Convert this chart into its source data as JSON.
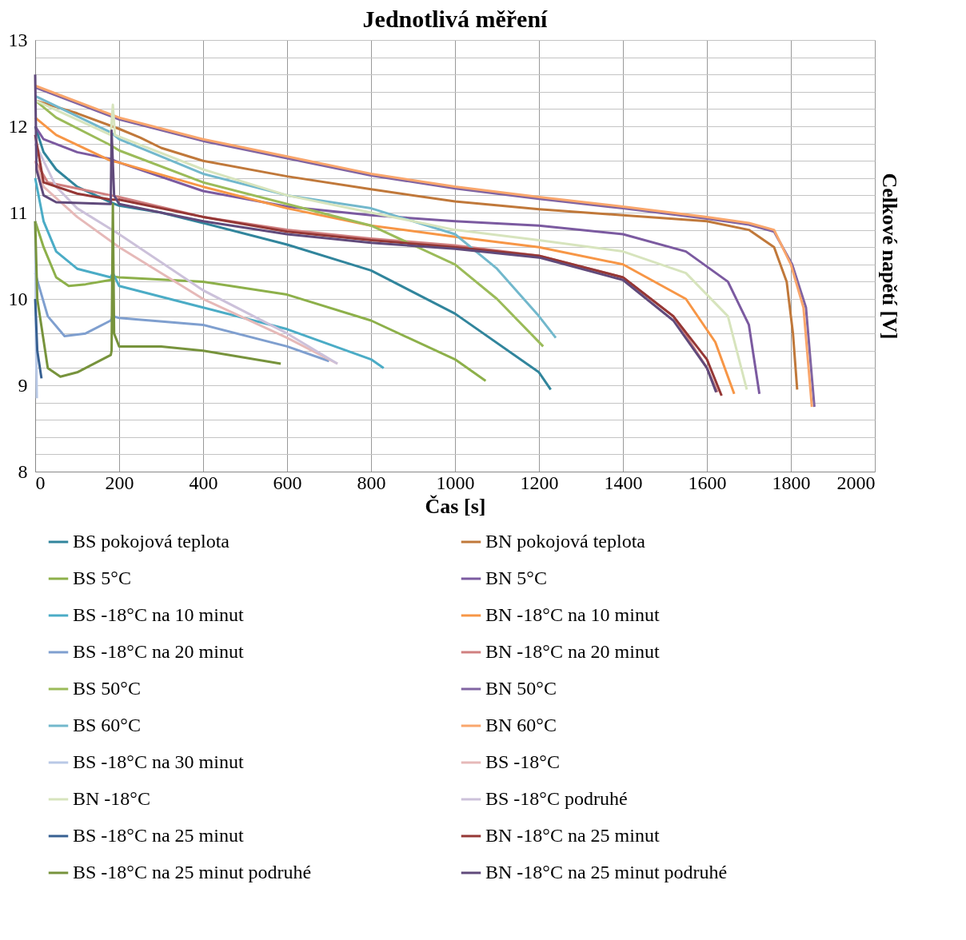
{
  "chart_data": {
    "type": "line",
    "title": "Jednotlivá měření",
    "xlabel": "Čas [s]",
    "y2label": "Celkové napětí [V]",
    "xlim": [
      0,
      2000
    ],
    "xticks": [
      0,
      200,
      400,
      600,
      800,
      1000,
      1200,
      1400,
      1600,
      1800,
      2000
    ],
    "ylim": [
      8,
      13
    ],
    "yticks": [
      8,
      {
        "value": 8.2,
        "label": null
      },
      {
        "value": 8.4,
        "label": null
      },
      {
        "value": 8.6,
        "label": null
      },
      {
        "value": 8.8,
        "label": null
      },
      9,
      {
        "value": 9.2,
        "label": null
      },
      {
        "value": 9.4,
        "label": null
      },
      {
        "value": 9.6,
        "label": null
      },
      {
        "value": 9.8,
        "label": null
      },
      10,
      {
        "value": 10.2,
        "label": null
      },
      {
        "value": 10.4,
        "label": null
      },
      {
        "value": 10.6,
        "label": null
      },
      {
        "value": 10.8,
        "label": null
      },
      11,
      {
        "value": 11.2,
        "label": null
      },
      {
        "value": 11.4,
        "label": null
      },
      {
        "value": 11.6,
        "label": null
      },
      {
        "value": 11.8,
        "label": null
      },
      12,
      {
        "value": 12.2,
        "label": null
      },
      {
        "value": 12.4,
        "label": null
      },
      {
        "value": 12.6,
        "label": null
      },
      {
        "value": 12.8,
        "label": null
      },
      13
    ],
    "grid": true,
    "legend": "bottom",
    "marker": "none",
    "line_style": "solid",
    "series": [
      {
        "name": "BS pokojová teplota",
        "color": "#31859c",
        "x": [
          0,
          20,
          50,
          100,
          180,
          200,
          300,
          400,
          600,
          800,
          1000,
          1200,
          1228
        ],
        "values": [
          12.0,
          11.7,
          11.5,
          11.3,
          11.12,
          11.08,
          11.0,
          10.88,
          10.63,
          10.33,
          9.83,
          9.15,
          8.95
        ]
      },
      {
        "name": "BN pokojová teplota",
        "color": "#c0783a",
        "x": [
          0,
          100,
          200,
          250,
          300,
          400,
          600,
          800,
          1000,
          1200,
          1400,
          1600,
          1700,
          1760,
          1790,
          1805,
          1815
        ],
        "values": [
          12.3,
          12.15,
          11.97,
          11.87,
          11.75,
          11.6,
          11.42,
          11.27,
          11.13,
          11.04,
          10.97,
          10.9,
          10.8,
          10.6,
          10.2,
          9.6,
          8.95
        ]
      },
      {
        "name": "BS 5°C",
        "color": "#8db04a",
        "x": [
          0,
          20,
          50,
          80,
          120,
          180,
          185,
          200,
          400,
          600,
          800,
          1000,
          1073
        ],
        "values": [
          10.9,
          10.6,
          10.25,
          10.15,
          10.17,
          10.22,
          10.26,
          10.25,
          10.2,
          10.05,
          9.75,
          9.3,
          9.05
        ]
      },
      {
        "name": "BN 5°C",
        "color": "#7b5aa0",
        "x": [
          0,
          20,
          100,
          180,
          200,
          400,
          600,
          800,
          1000,
          1200,
          1400,
          1550,
          1650,
          1700,
          1725
        ],
        "values": [
          12.0,
          11.85,
          11.7,
          11.62,
          11.58,
          11.25,
          11.07,
          10.97,
          10.9,
          10.85,
          10.75,
          10.55,
          10.2,
          9.7,
          8.9
        ]
      },
      {
        "name": "BS -18°C na 10 minut",
        "color": "#4bacc6",
        "x": [
          0,
          20,
          50,
          100,
          180,
          185,
          200,
          400,
          600,
          800,
          830
        ],
        "values": [
          11.4,
          10.9,
          10.55,
          10.35,
          10.25,
          10.3,
          10.15,
          9.9,
          9.65,
          9.3,
          9.2
        ]
      },
      {
        "name": "BN -18°C na 10 minut",
        "color": "#f79646",
        "x": [
          0,
          50,
          180,
          200,
          400,
          600,
          800,
          1000,
          1200,
          1400,
          1550,
          1620,
          1665
        ],
        "values": [
          12.1,
          11.9,
          11.6,
          11.58,
          11.3,
          11.05,
          10.85,
          10.72,
          10.6,
          10.4,
          10.0,
          9.5,
          8.9
        ]
      },
      {
        "name": "BS -18°C na 20 minut",
        "color": "#7f9fcf",
        "x": [
          0,
          30,
          70,
          120,
          180,
          185,
          200,
          400,
          600,
          700
        ],
        "values": [
          10.3,
          9.8,
          9.57,
          9.6,
          9.75,
          9.8,
          9.78,
          9.7,
          9.45,
          9.28
        ]
      },
      {
        "name": "BN -18°C na 20 minut",
        "color": "#d08080",
        "x": [
          0,
          30,
          100,
          180,
          200,
          400,
          600,
          800,
          1000,
          1200,
          1400,
          1520,
          1600,
          1625
        ],
        "values": [
          11.6,
          11.35,
          11.28,
          11.2,
          11.18,
          10.95,
          10.8,
          10.7,
          10.62,
          10.5,
          10.25,
          9.8,
          9.2,
          8.92
        ]
      },
      {
        "name": "BS 50°C",
        "color": "#9bbb59",
        "x": [
          0,
          50,
          180,
          200,
          400,
          600,
          800,
          1000,
          1100,
          1210
        ],
        "values": [
          12.3,
          12.1,
          11.78,
          11.72,
          11.35,
          11.1,
          10.85,
          10.4,
          10.0,
          9.45
        ]
      },
      {
        "name": "BN 50°C",
        "color": "#8064a2",
        "x": [
          0,
          200,
          400,
          600,
          800,
          1000,
          1200,
          1400,
          1600,
          1700,
          1760,
          1803,
          1836,
          1856
        ],
        "values": [
          12.45,
          12.08,
          11.83,
          11.63,
          11.43,
          11.28,
          11.16,
          11.05,
          10.93,
          10.86,
          10.78,
          10.4,
          9.9,
          8.75
        ]
      },
      {
        "name": "BS 60°C",
        "color": "#72b8cc",
        "x": [
          0,
          180,
          200,
          400,
          600,
          800,
          1000,
          1100,
          1200,
          1240
        ],
        "values": [
          12.35,
          11.93,
          11.85,
          11.45,
          11.2,
          11.05,
          10.75,
          10.35,
          9.8,
          9.55
        ]
      },
      {
        "name": "BN 60°C",
        "color": "#f9a66c",
        "x": [
          0,
          200,
          400,
          600,
          800,
          1000,
          1200,
          1400,
          1600,
          1700,
          1760,
          1800,
          1830,
          1850
        ],
        "values": [
          12.47,
          12.1,
          11.85,
          11.65,
          11.45,
          11.3,
          11.18,
          11.07,
          10.95,
          10.88,
          10.8,
          10.4,
          9.9,
          8.75
        ]
      },
      {
        "name": "BS -18°C na 30 minut",
        "color": "#b9c9e6",
        "x": [
          0,
          2,
          4
        ],
        "values": [
          10.9,
          9.5,
          8.85
        ]
      },
      {
        "name": "BS -18°C",
        "color": "#e6b9b8",
        "x": [
          0,
          20,
          100,
          200,
          400,
          600,
          720
        ],
        "values": [
          11.6,
          11.3,
          10.95,
          10.6,
          10.0,
          9.55,
          9.25
        ]
      },
      {
        "name": "BN -18°C",
        "color": "#d7e4bd",
        "x": [
          0,
          180,
          185,
          190,
          400,
          600,
          800,
          1000,
          1200,
          1400,
          1550,
          1650,
          1695
        ],
        "values": [
          12.3,
          11.9,
          12.25,
          11.9,
          11.5,
          11.2,
          11.0,
          10.8,
          10.68,
          10.55,
          10.3,
          9.8,
          8.95
        ]
      },
      {
        "name": "BS -18°C podruhé",
        "color": "#ccc1da",
        "x": [
          0,
          50,
          100,
          200,
          400,
          600,
          720
        ],
        "values": [
          11.8,
          11.3,
          11.05,
          10.75,
          10.1,
          9.6,
          9.25
        ]
      },
      {
        "name": "BS -18°C na 25 minut",
        "color": "#376092",
        "x": [
          0,
          5,
          15
        ],
        "values": [
          10.0,
          9.4,
          9.08
        ]
      },
      {
        "name": "BN -18°C na 25 minut",
        "color": "#953735",
        "x": [
          0,
          20,
          100,
          180,
          200,
          400,
          600,
          800,
          1000,
          1200,
          1400,
          1520,
          1600,
          1635
        ],
        "values": [
          11.9,
          11.35,
          11.22,
          11.15,
          11.15,
          10.95,
          10.78,
          10.68,
          10.6,
          10.5,
          10.25,
          9.8,
          9.3,
          8.88
        ]
      },
      {
        "name": "BS -18°C na 25 minut podruhé",
        "color": "#77933c",
        "x": [
          0,
          5,
          30,
          60,
          100,
          180,
          182,
          185,
          188,
          200,
          300,
          400,
          500,
          585
        ],
        "values": [
          10.9,
          10.0,
          9.2,
          9.1,
          9.15,
          9.35,
          9.4,
          11.1,
          9.6,
          9.45,
          9.45,
          9.4,
          9.32,
          9.25
        ]
      },
      {
        "name": "BN -18°C na 25 minut podruhé",
        "color": "#604a7b",
        "x": [
          0,
          3,
          20,
          50,
          180,
          182,
          188,
          200,
          400,
          600,
          800,
          1000,
          1200,
          1400,
          1520,
          1600,
          1622
        ],
        "values": [
          12.6,
          11.5,
          11.2,
          11.12,
          11.1,
          11.95,
          11.2,
          11.1,
          10.9,
          10.75,
          10.65,
          10.58,
          10.48,
          10.22,
          9.75,
          9.2,
          8.92
        ]
      }
    ]
  }
}
